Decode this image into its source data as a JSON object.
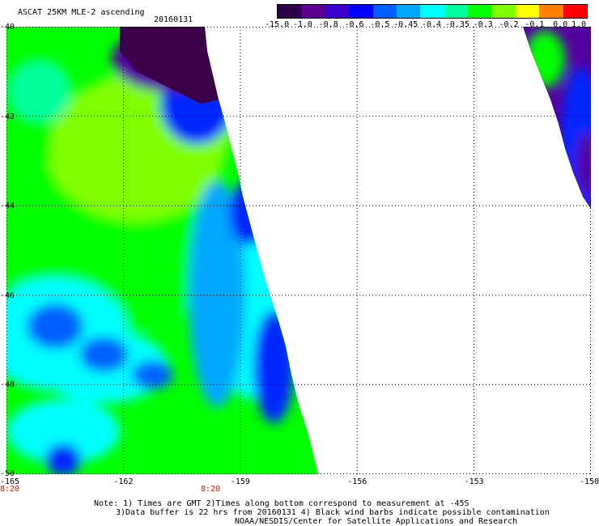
{
  "header": {
    "title": "ASCAT 25KM MLE-2 ascending",
    "date": "20160131"
  },
  "colorbar": {
    "labels": [
      "-15.0",
      "-1.0",
      "-0.8",
      "-0.6",
      "-0.5",
      "-0.45",
      "-0.4",
      "-0.35",
      "-0.3",
      "-0.2",
      "-0.1",
      "0.0",
      "1.0"
    ],
    "colors": [
      "#2a0048",
      "#5a0090",
      "#3a00cc",
      "#0000ff",
      "#0060ff",
      "#00a8ff",
      "#00ffff",
      "#00ffa0",
      "#00ff00",
      "#80ff00",
      "#ffff00",
      "#ff8000",
      "#ff0000"
    ]
  },
  "map": {
    "lon_range": [
      -165,
      -150
    ],
    "lat_range": [
      -50,
      -40
    ],
    "y_ticks": [
      "-40",
      "-42",
      "-44",
      "-46",
      "-48",
      "-50"
    ],
    "x_ticks": [
      "-165",
      "-162",
      "-159",
      "-156",
      "-153",
      "-150"
    ],
    "times": [
      "8:20",
      "8:20"
    ],
    "field_colors": {
      "dark": "#3a004a",
      "purple": "#5500a0",
      "blue": "#0028ff",
      "mid_blue": "#0060ff",
      "light_blue": "#00a8ff",
      "cyan": "#00ffff",
      "sea_green": "#00ff9a",
      "green": "#00ff00",
      "lime": "#80ff00"
    }
  },
  "notes": {
    "line1": "Note: 1) Times are GMT 2)Times along bottom correspond to measurement at -45S",
    "line2": "3)Data buffer is 22 hrs from 20160131 4) Black wind barbs indicate possible contamination",
    "line3": "NOAA/NESDIS/Center for Satellite Applications and Research"
  }
}
